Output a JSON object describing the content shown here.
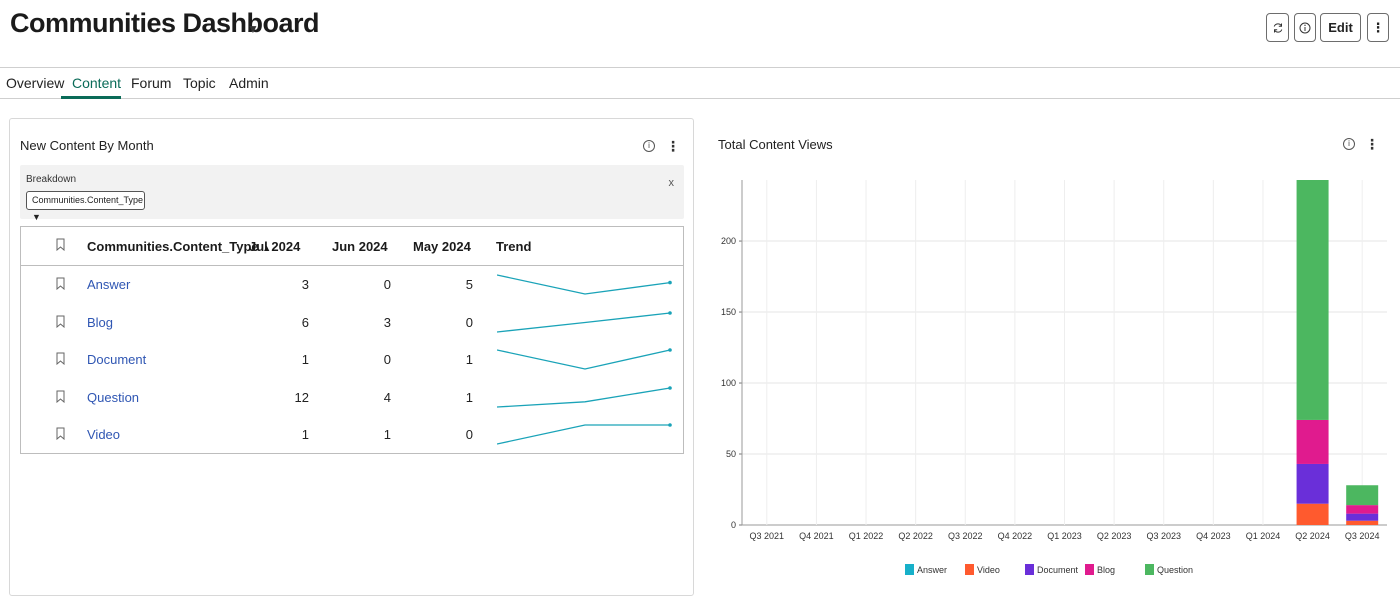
{
  "header": {
    "title": "Communities Dashboard",
    "edit_label": "Edit"
  },
  "tabs": [
    {
      "label": "Overview"
    },
    {
      "label": "Content"
    },
    {
      "label": "Forum"
    },
    {
      "label": "Topic"
    },
    {
      "label": "Admin"
    }
  ],
  "active_tab": "Content",
  "left_card": {
    "title": "New Content By Month",
    "breakdown_label": "Breakdown",
    "breakdown_value": "Communities.Content_Type",
    "close_label": "x",
    "columns": [
      "Communities.Content_Type",
      "Jul 2024",
      "Jun 2024",
      "May 2024",
      "Trend"
    ],
    "rows": [
      {
        "name": "Answer",
        "jul": "3",
        "jun": "0",
        "may": "5",
        "trend": [
          5,
          0,
          3
        ]
      },
      {
        "name": "Blog",
        "jul": "6",
        "jun": "3",
        "may": "0",
        "trend": [
          0,
          3,
          6
        ]
      },
      {
        "name": "Document",
        "jul": "1",
        "jun": "0",
        "may": "1",
        "trend": [
          1,
          0,
          1
        ]
      },
      {
        "name": "Question",
        "jul": "12",
        "jun": "4",
        "may": "1",
        "trend": [
          1,
          4,
          12
        ]
      },
      {
        "name": "Video",
        "jul": "1",
        "jun": "1",
        "may": "0",
        "trend": [
          0,
          1,
          1
        ]
      }
    ],
    "trend_color": "#1aa3b8"
  },
  "chart_data": {
    "type": "bar",
    "stacked": true,
    "title": "Total Content Views",
    "categories": [
      "Q3 2021",
      "Q4 2021",
      "Q1 2022",
      "Q2 2022",
      "Q3 2022",
      "Q4 2022",
      "Q1 2023",
      "Q2 2023",
      "Q3 2023",
      "Q4 2023",
      "Q1 2024",
      "Q2 2024",
      "Q3 2024"
    ],
    "ylim": [
      0,
      243
    ],
    "yticks": [
      0,
      50,
      100,
      150,
      200
    ],
    "grid": true,
    "legend_position": "bottom",
    "series": [
      {
        "name": "Answer",
        "color": "#17b0c9",
        "values": [
          0,
          0,
          0,
          0,
          0,
          0,
          0,
          0,
          0,
          0,
          0,
          0,
          0
        ]
      },
      {
        "name": "Video",
        "color": "#ff5a2e",
        "values": [
          0,
          0,
          0,
          0,
          0,
          0,
          0,
          0,
          0,
          0,
          0,
          15,
          3
        ]
      },
      {
        "name": "Document",
        "color": "#6a2fd9",
        "values": [
          0,
          0,
          0,
          0,
          0,
          0,
          0,
          0,
          0,
          0,
          0,
          28,
          5
        ]
      },
      {
        "name": "Blog",
        "color": "#e01b8e",
        "values": [
          0,
          0,
          0,
          0,
          0,
          0,
          0,
          0,
          0,
          0,
          0,
          31,
          6
        ]
      },
      {
        "name": "Question",
        "color": "#4cb760",
        "values": [
          0,
          0,
          0,
          0,
          0,
          0,
          0,
          0,
          0,
          0,
          0,
          169,
          14
        ]
      }
    ]
  }
}
